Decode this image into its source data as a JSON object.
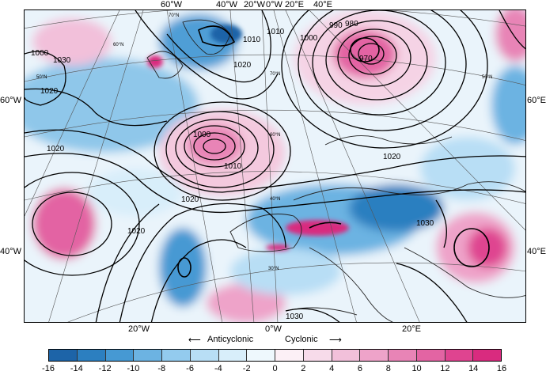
{
  "map": {
    "top_lon_labels": [
      "60°W",
      "40°W",
      "20°W",
      "0°W",
      "20°E",
      "40°E"
    ],
    "left_lat_labels": [
      "60°W",
      "40°W"
    ],
    "right_lat_labels": [
      "60°E",
      "40°E"
    ],
    "bottom_lon_labels": [
      "20°W",
      "0°W",
      "20°E"
    ],
    "contour_labels": [
      "1000",
      "1020",
      "1020",
      "1020",
      "1020",
      "1000",
      "1010",
      "1020",
      "1030",
      "1010",
      "1000",
      "990",
      "980",
      "970",
      "1020",
      "1030",
      "1030",
      "1010"
    ],
    "grid_lat_labels": [
      "70°N",
      "60°N",
      "50°N",
      "40°N",
      "30°N",
      "70°N",
      "60°N",
      "50°N"
    ],
    "colors": {
      "strong_negative": "#1f6fb4",
      "weak_negative": "#cfe9f7",
      "neutral": "#ffffff",
      "weak_positive": "#f6d6e6",
      "strong_positive": "#e0338a",
      "land_outline": "#222222"
    }
  },
  "colorbar": {
    "ticks": [
      "-16",
      "-14",
      "-12",
      "-10",
      "-8",
      "-6",
      "-4",
      "-2",
      "0",
      "2",
      "4",
      "6",
      "8",
      "10",
      "12",
      "14",
      "16"
    ],
    "colors": [
      "#1d64a8",
      "#2c7fc0",
      "#4699d3",
      "#6cb3e2",
      "#93cbee",
      "#b8def5",
      "#d8eefa",
      "#eef8fd",
      "#fcf0f6",
      "#f7dbea",
      "#f2c0da",
      "#eea3c9",
      "#e884b6",
      "#e364a3",
      "#df4490",
      "#d92b7f"
    ]
  },
  "arrow_labels": {
    "left": "Anticyclonic",
    "right": "Cyclonic"
  }
}
